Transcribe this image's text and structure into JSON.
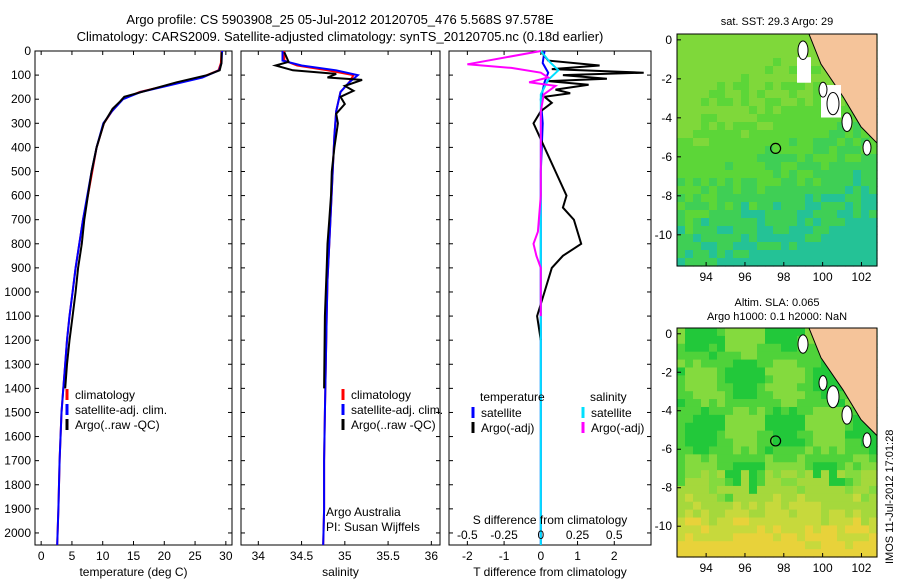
{
  "header": {
    "line1": "Argo profile: CS 5903908_25 05-Jul-2012 20120705_476 5.568S 97.578E",
    "line2": "Climatology: CARS2009. Satellite-adjusted climatology: synTS_20120705.nc (0.18d earlier)"
  },
  "side_label": "IMOS 11-Jul-2012 17:01:28",
  "depth_ticks": [
    0,
    100,
    200,
    300,
    400,
    500,
    600,
    700,
    800,
    900,
    1000,
    1100,
    1200,
    1300,
    1400,
    1500,
    1600,
    1700,
    1800,
    1900,
    2000
  ],
  "colors": {
    "climatology": "#ff0000",
    "satellite": "#0000ff",
    "argo": "#000000",
    "sat_salinity": "#00e0ff",
    "argo_salinity": "#ff00ff",
    "land": "#f5c49a"
  },
  "chart_data": [
    {
      "type": "line",
      "xlabel": "temperature (deg C)",
      "ylabel": "",
      "xlim": [
        -1,
        31
      ],
      "ylim": [
        2050,
        0
      ],
      "xticks": [
        0,
        5,
        10,
        15,
        20,
        25,
        30
      ],
      "legend": [
        "climatology",
        "satellite-adj. clim.",
        "Argo(..raw -QC)"
      ],
      "series": [
        {
          "name": "climatology",
          "x": [
            29.3,
            29.2,
            28.8,
            26,
            21,
            16,
            13.2,
            11.5,
            10.2,
            9,
            8.3,
            7.6,
            6.8,
            6.2,
            5.6,
            5.1,
            4.6,
            4.2,
            3.9,
            3.6,
            3.3,
            3.0,
            2.8,
            2.6
          ],
          "y": [
            0,
            50,
            80,
            110,
            140,
            170,
            200,
            250,
            300,
            400,
            500,
            600,
            700,
            800,
            900,
            1000,
            1100,
            1200,
            1300,
            1400,
            1500,
            1700,
            1900,
            2050
          ]
        },
        {
          "name": "satellite-adj. clim.",
          "x": [
            29.4,
            29.3,
            28.9,
            26.2,
            21.3,
            16.2,
            13.3,
            11.5,
            10.1,
            9,
            8.2,
            7.5,
            6.8,
            6.2,
            5.6,
            5.1,
            4.6,
            4.2,
            3.9,
            3.6,
            3.3,
            3.0,
            2.8,
            2.6
          ],
          "y": [
            0,
            50,
            80,
            110,
            140,
            170,
            200,
            250,
            300,
            400,
            500,
            600,
            700,
            800,
            900,
            1000,
            1100,
            1200,
            1300,
            1400,
            1500,
            1700,
            1900,
            2050
          ]
        },
        {
          "name": "Argo(..raw -QC)",
          "x": [
            29.3,
            29.3,
            29.0,
            27,
            22,
            17,
            13.5,
            12.8,
            11.6,
            10.2,
            9.0,
            8.2,
            7.6,
            7.0,
            6.6,
            6.0,
            5.6,
            5.1,
            4.6,
            4.2,
            3.9
          ],
          "y": [
            5,
            50,
            80,
            100,
            130,
            165,
            190,
            210,
            240,
            300,
            400,
            500,
            600,
            700,
            800,
            900,
            1000,
            1100,
            1200,
            1300,
            1400
          ]
        }
      ]
    },
    {
      "type": "line",
      "xlabel": "salinity",
      "ylabel": "",
      "xlim": [
        33.8,
        36.1
      ],
      "ylim": [
        2050,
        0
      ],
      "xticks": [
        34,
        34.5,
        35,
        35.5,
        36
      ],
      "legend": [
        "climatology",
        "satellite-adj. clim.",
        "Argo(..raw -QC)"
      ],
      "annotation": [
        "Argo Australia",
        "PI: Susan Wijffels"
      ],
      "series": [
        {
          "name": "climatology",
          "x": [
            34.3,
            34.3,
            34.45,
            34.8,
            35.1,
            35.05,
            34.95,
            34.9,
            34.88,
            34.86,
            34.84,
            34.82,
            34.8,
            34.79,
            34.78,
            34.77,
            34.76,
            34.76,
            34.75
          ],
          "y": [
            0,
            40,
            60,
            80,
            100,
            130,
            170,
            250,
            350,
            500,
            650,
            800,
            950,
            1100,
            1300,
            1500,
            1700,
            1900,
            2050
          ]
        },
        {
          "name": "satellite-adj. clim.",
          "x": [
            34.28,
            34.28,
            34.5,
            34.9,
            35.15,
            35.05,
            34.95,
            34.9,
            34.88,
            34.86,
            34.84,
            34.82,
            34.8,
            34.79,
            34.78,
            34.77,
            34.76,
            34.76,
            34.75
          ],
          "y": [
            0,
            40,
            60,
            80,
            100,
            130,
            170,
            250,
            350,
            500,
            650,
            800,
            950,
            1100,
            1300,
            1500,
            1700,
            1900,
            2050
          ]
        },
        {
          "name": "Argo(..raw -QC)",
          "x": [
            34.3,
            34.35,
            34.2,
            34.4,
            34.9,
            34.8,
            35.2,
            35.0,
            35.1,
            34.95,
            35.0,
            34.9,
            34.92,
            34.88,
            34.85,
            34.84,
            34.82,
            34.8,
            34.79,
            34.78,
            34.77,
            34.76
          ],
          "y": [
            5,
            45,
            60,
            80,
            95,
            110,
            120,
            145,
            165,
            190,
            220,
            260,
            300,
            400,
            500,
            600,
            700,
            800,
            900,
            1000,
            1100,
            1400
          ]
        }
      ]
    },
    {
      "type": "line",
      "xlabel": "T difference from climatology",
      "x2label": "S difference from climatology",
      "xlim": [
        -2.5,
        3
      ],
      "x2lim": [
        -0.625,
        0.75
      ],
      "ylim": [
        2050,
        0
      ],
      "xticks": [
        -2,
        -1,
        0,
        1,
        2
      ],
      "x2ticks": [
        -0.5,
        -0.25,
        0,
        0.25,
        0.5
      ],
      "legend_groups": [
        {
          "heading": "temperature",
          "items": [
            "satellite",
            "Argo(-adj)"
          ]
        },
        {
          "heading": "salinity",
          "items": [
            "satellite",
            "Argo(-adj)"
          ]
        }
      ],
      "series": [
        {
          "name": "temperature satellite",
          "axis": "T",
          "x": [
            0.1,
            0.05,
            0.2,
            0.1,
            0,
            0.05,
            0,
            0,
            0,
            0
          ],
          "y": [
            0,
            50,
            90,
            130,
            200,
            300,
            500,
            800,
            1300,
            2050
          ]
        },
        {
          "name": "temperature Argo(-adj)",
          "axis": "T",
          "x": [
            0,
            0.2,
            1.6,
            0.3,
            2.8,
            0.6,
            1.8,
            0.2,
            1.3,
            0.4,
            0.8,
            0.1,
            0.3,
            0.0,
            -0.2,
            0.1,
            0.4,
            0.7,
            0.6,
            0.9,
            1.1,
            0.6,
            0.3,
            0.1,
            -0.1,
            0
          ],
          "y": [
            0,
            40,
            60,
            75,
            90,
            100,
            115,
            125,
            140,
            160,
            175,
            190,
            215,
            250,
            300,
            400,
            500,
            600,
            650,
            700,
            800,
            850,
            900,
            1000,
            1100,
            1200
          ]
        },
        {
          "name": "salinity satellite",
          "axis": "S",
          "x": [
            0,
            0.06,
            0.12,
            0.05,
            0,
            0,
            0,
            0,
            0,
            0
          ],
          "y": [
            0,
            45,
            80,
            120,
            180,
            250,
            400,
            700,
            1300,
            2050
          ]
        },
        {
          "name": "salinity Argo(-adj)",
          "axis": "S",
          "x": [
            0,
            -0.5,
            -0.2,
            0,
            0.05,
            -0.08,
            0.1,
            0.02,
            0,
            0,
            0,
            -0.02,
            -0.05,
            -0.03,
            0,
            0
          ],
          "y": [
            0,
            55,
            70,
            90,
            110,
            130,
            145,
            180,
            250,
            400,
            600,
            750,
            800,
            850,
            900,
            1100
          ]
        }
      ]
    },
    {
      "type": "heatmap",
      "title": "sat. SST: 29.3 Argo: 29",
      "xlim": [
        92.5,
        102.8
      ],
      "ylim": [
        -11.6,
        0.3
      ],
      "xticks": [
        94,
        96,
        98,
        100,
        102
      ],
      "yticks": [
        0,
        -2,
        -4,
        -6,
        -8,
        -10
      ],
      "marker": {
        "lon": 97.578,
        "lat": -5.568
      }
    },
    {
      "type": "heatmap",
      "title": "Altim. SLA: 0.065",
      "subtitle": "Argo h1000: 0.1 h2000: NaN",
      "xlim": [
        92.5,
        102.8
      ],
      "ylim": [
        -11.6,
        0.3
      ],
      "xticks": [
        94,
        96,
        98,
        100,
        102
      ],
      "yticks": [
        0,
        -2,
        -4,
        -6,
        -8,
        -10
      ],
      "marker": {
        "lon": 97.578,
        "lat": -5.568
      }
    }
  ]
}
